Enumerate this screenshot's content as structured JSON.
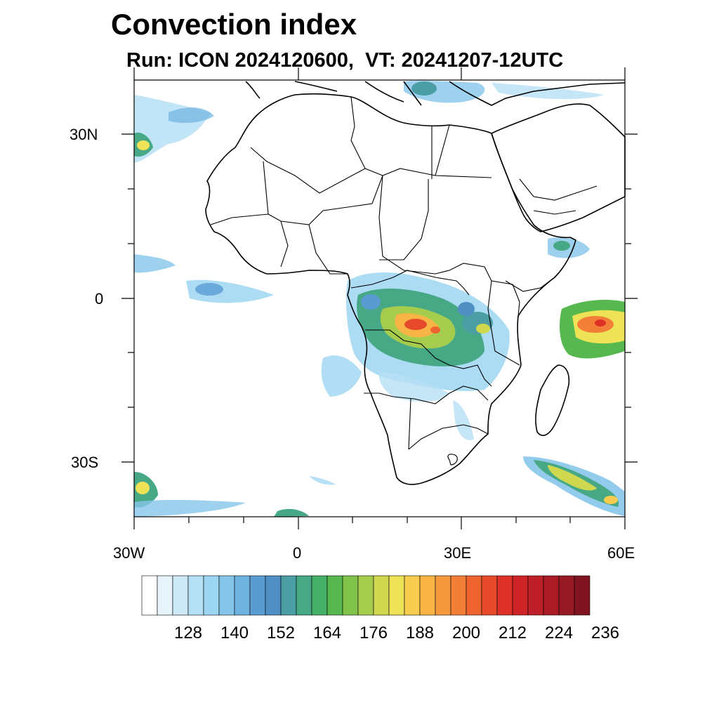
{
  "title": "Convection index",
  "subtitle": "Run: ICON 2024120600,  VT: 20241207-12UTC",
  "lat_labels": [
    "30N",
    "0",
    "30S"
  ],
  "lon_labels": [
    "30W",
    "0",
    "30E",
    "60E"
  ],
  "colorbar": {
    "colors": [
      "#ffffff",
      "#e6f3fb",
      "#cde9f7",
      "#b6e0f5",
      "#9dd6f2",
      "#86c5ea",
      "#6eb3e0",
      "#5a9cd2",
      "#4f8fc4",
      "#4a9ea4",
      "#47a886",
      "#45b068",
      "#56b84f",
      "#80c24a",
      "#a6cc4d",
      "#cfd84f",
      "#eee256",
      "#f7cc4f",
      "#f8b546",
      "#f6983e",
      "#f37e37",
      "#ef6331",
      "#e7492b",
      "#dd3128",
      "#cf2427",
      "#bf1f28",
      "#ab1b26",
      "#971923",
      "#7f1420"
    ],
    "labels": [
      "128",
      "140",
      "152",
      "164",
      "176",
      "188",
      "200",
      "212",
      "224",
      "236"
    ]
  },
  "legend_levels": [
    128,
    140,
    152,
    164,
    176,
    188,
    200,
    212,
    224,
    236
  ]
}
